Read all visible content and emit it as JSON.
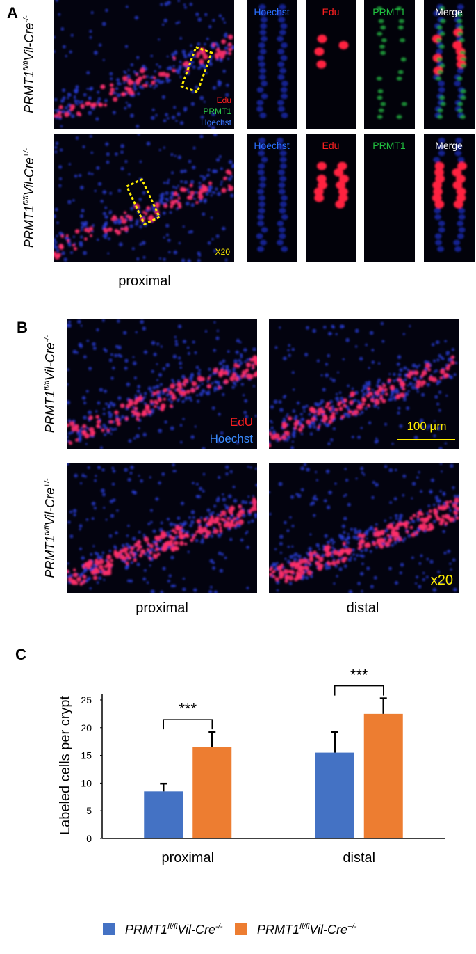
{
  "panel_a": {
    "label": "A",
    "rows": [
      {
        "genotype": {
          "gene": "PRMT1",
          "allele": "fl/fl",
          "driver": "Vil-Cre",
          "zygosity": "-/-"
        },
        "stain_labels": [
          "Edu",
          "PRMT1",
          "Hoechst"
        ],
        "channels": [
          "Hoechst",
          "Edu",
          "PRMT1",
          "Merge"
        ]
      },
      {
        "genotype": {
          "gene": "PRMT1",
          "allele": "fl/fl",
          "driver": "Vil-Cre",
          "zygosity": "+/-"
        },
        "magnification": "X20",
        "channels": [
          "Hoechst",
          "Edu",
          "PRMT1",
          "Merge"
        ]
      }
    ],
    "region": "proximal"
  },
  "panel_b": {
    "label": "B",
    "rows": [
      {
        "genotype": {
          "gene": "PRMT1",
          "allele": "fl/fl",
          "driver": "Vil-Cre",
          "zygosity": "-/-"
        }
      },
      {
        "genotype": {
          "gene": "PRMT1",
          "allele": "fl/fl",
          "driver": "Vil-Cre",
          "zygosity": "+/-"
        }
      }
    ],
    "stain_labels": [
      "EdU",
      "Hoechst"
    ],
    "scale_bar": "100 µm",
    "magnification": "x20",
    "columns": [
      "proximal",
      "distal"
    ]
  },
  "panel_c": {
    "label": "C"
  },
  "chart_data": {
    "type": "bar",
    "y_label": "Labeled cells per crypt",
    "categories": [
      "proximal",
      "distal"
    ],
    "series": [
      {
        "name": {
          "gene": "PRMT1",
          "allele": "fl/fl",
          "driver": "Vil-Cre",
          "zygosity": "-/-"
        },
        "color": "#4472c4",
        "values": [
          8.5,
          15.5
        ],
        "errors": [
          1.4,
          3.7
        ]
      },
      {
        "name": {
          "gene": "PRMT1",
          "allele": "fl/fl",
          "driver": "Vil-Cre",
          "zygosity": "+/-"
        },
        "color": "#ed7d31",
        "values": [
          16.5,
          22.5
        ],
        "errors": [
          2.7,
          2.8
        ]
      }
    ],
    "annotations": [
      "***",
      "***"
    ],
    "ylim": [
      0,
      26
    ],
    "yticks": [
      0,
      5,
      10,
      15,
      20,
      25
    ],
    "grid": false
  }
}
